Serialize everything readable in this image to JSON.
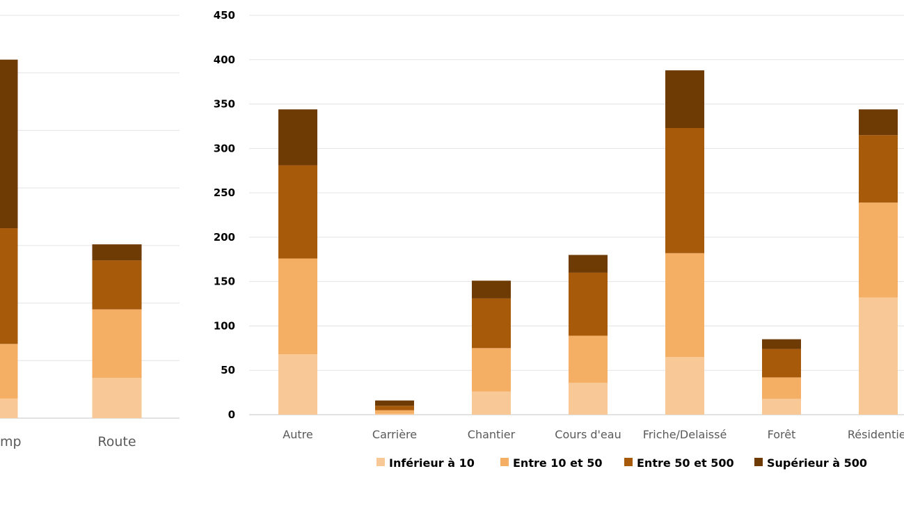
{
  "chart_data": [
    {
      "type": "bar",
      "stacked": true,
      "note": "partially visible chart, no axis labels visible; values in gridline units",
      "categories": [
        "mp",
        "Route"
      ],
      "ylim": [
        0,
        7
      ],
      "grid": true,
      "series": [
        {
          "name": "Inférieur à  10",
          "values": [
            0.34,
            0.7
          ]
        },
        {
          "name": "Entre 10 et 50",
          "values": [
            0.95,
            1.19
          ]
        },
        {
          "name": "Entre 50 et 500",
          "values": [
            2.01,
            0.85
          ]
        },
        {
          "name": "Supérieur à  500",
          "values": [
            2.93,
            0.28
          ]
        }
      ]
    },
    {
      "type": "bar",
      "stacked": true,
      "categories": [
        "Autre",
        "Carrière",
        "Chantier",
        "Cours d'eau",
        "Friche/Delaissé",
        "Forêt",
        "Résidentiel"
      ],
      "ylim": [
        0,
        450
      ],
      "yticks": [
        "0",
        "50",
        "100",
        "150",
        "200",
        "250",
        "300",
        "350",
        "400",
        "450"
      ],
      "grid": true,
      "legend_position": "bottom",
      "series": [
        {
          "name": "Inférieur à  10",
          "values": [
            68,
            1,
            26,
            36,
            65,
            18,
            132
          ]
        },
        {
          "name": "Entre 10 et 50",
          "values": [
            108,
            4,
            49,
            53,
            117,
            24,
            107
          ]
        },
        {
          "name": "Entre 50 et 500",
          "values": [
            105,
            5,
            56,
            71,
            141,
            32,
            76
          ]
        },
        {
          "name": "Supérieur à  500",
          "values": [
            63,
            6,
            20,
            20,
            65,
            11,
            29
          ]
        }
      ]
    }
  ],
  "colors": [
    "#F8C896",
    "#F5AF65",
    "#A85A0B",
    "#6E3B05"
  ],
  "grid_color": "#E3E3E3"
}
